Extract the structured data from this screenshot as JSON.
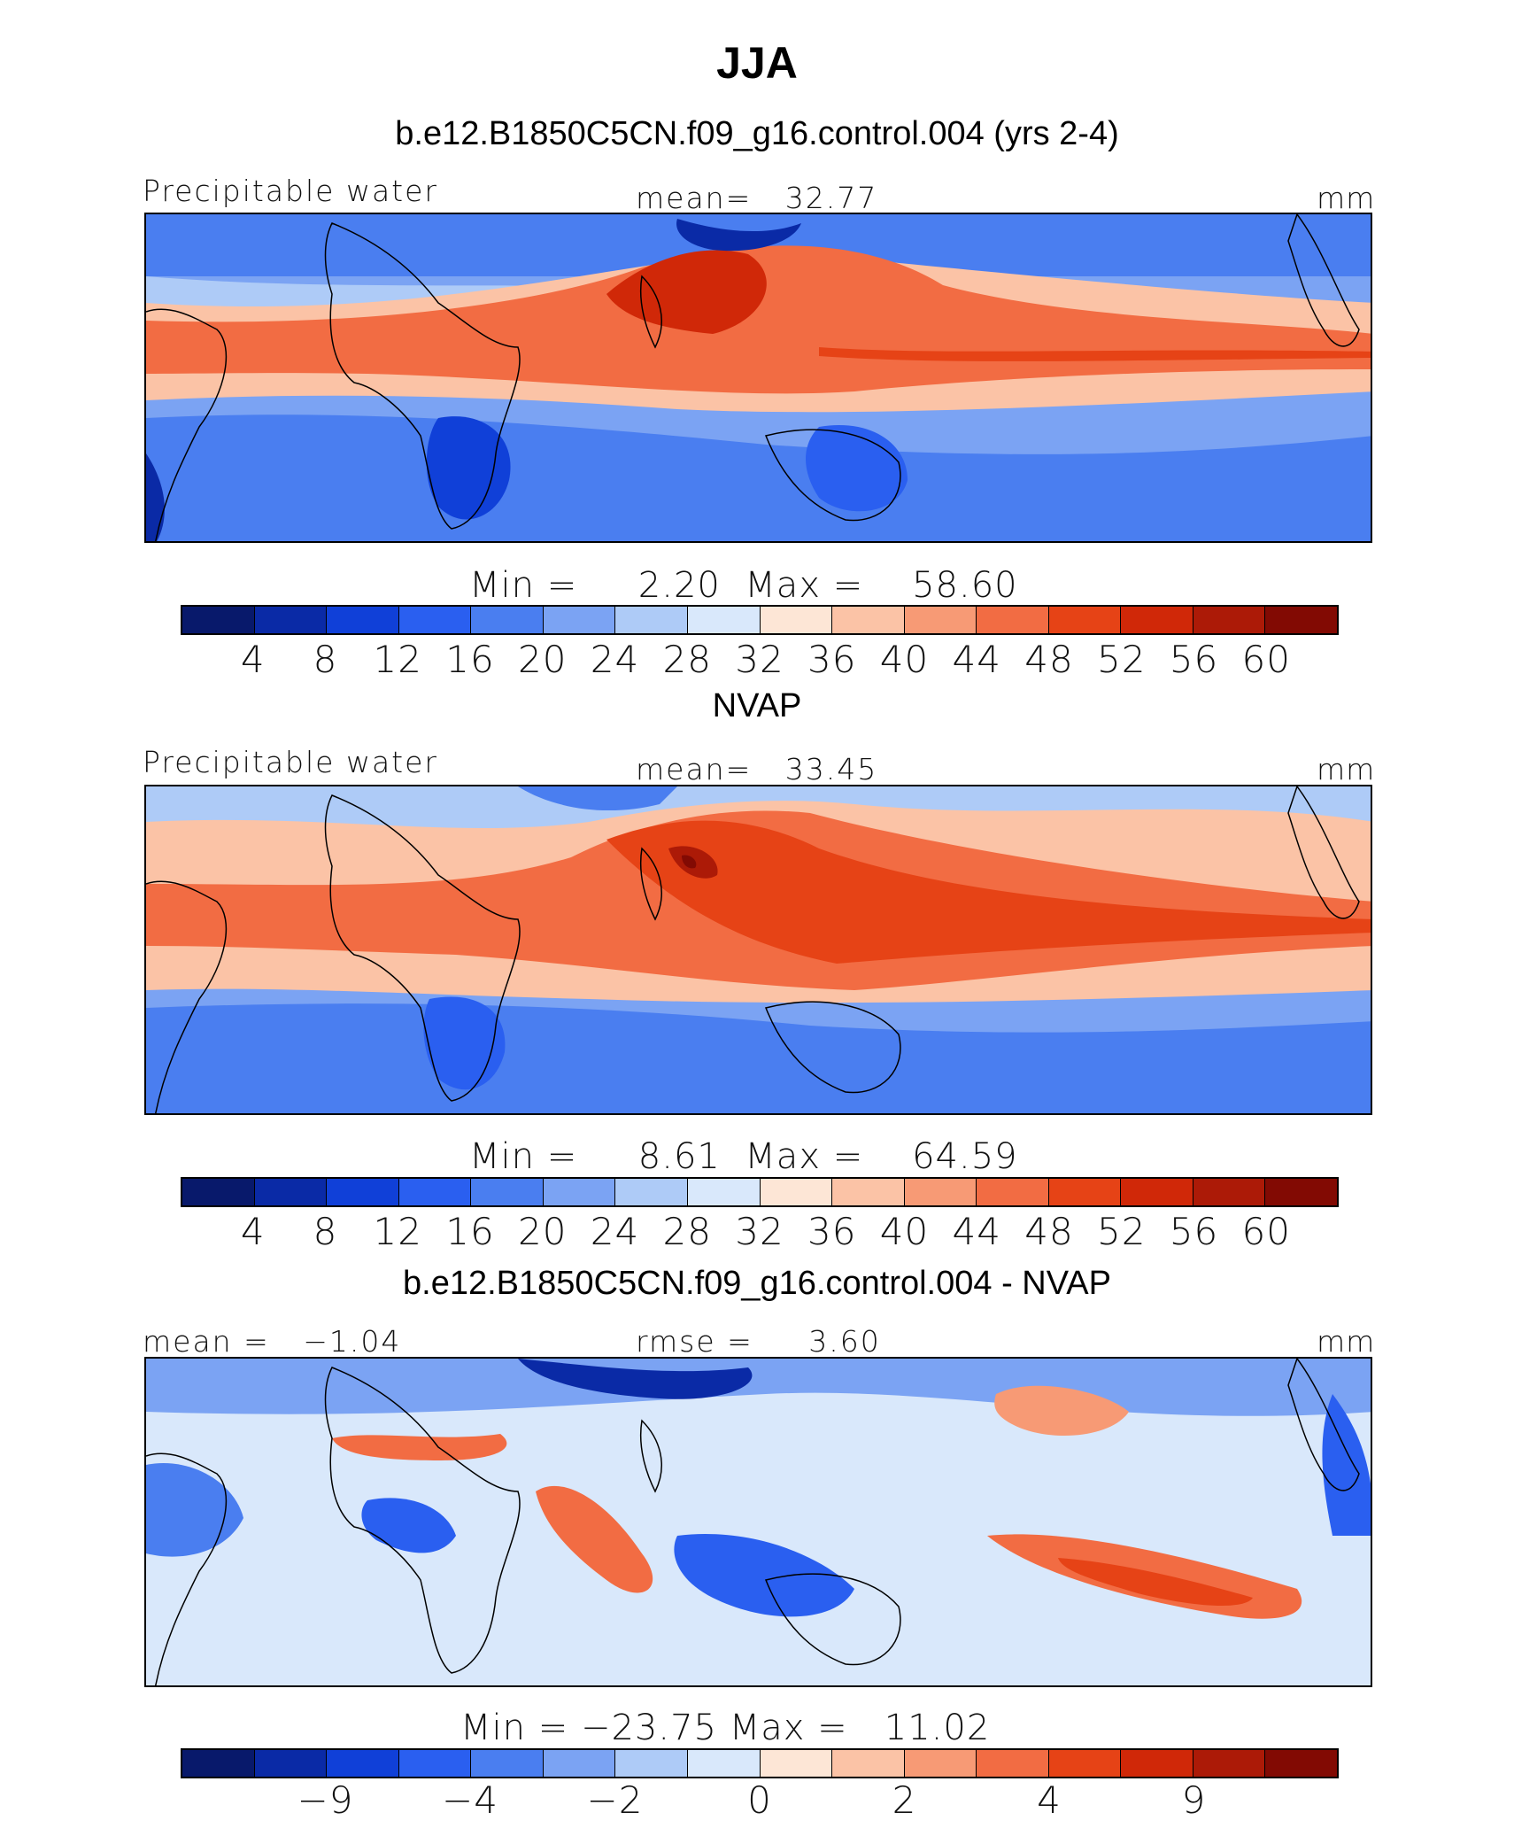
{
  "title": "JJA",
  "colors": [
    "#08196b",
    "#0a2aa6",
    "#1040d8",
    "#2a5ff0",
    "#4a7ef0",
    "#7ba3f3",
    "#aecbf7",
    "#d9e8fb",
    "#fde6d6",
    "#fbc3a6",
    "#f79a75",
    "#f26c43",
    "#e64316",
    "#d02808",
    "#ac1a07",
    "#820a03"
  ],
  "chart_data": [
    {
      "type": "contour map",
      "title": "b.e12.B1850C5CN.f09_g16.control.004 (yrs 2-4)",
      "variable": "Precipitable water",
      "mean_label": "mean=",
      "mean": "32.77",
      "units": "mm",
      "min_label": "Min =",
      "min": "2.20",
      "max_label": "Max =",
      "max": "58.60",
      "contour_levels": [
        "4",
        "8",
        "12",
        "16",
        "20",
        "24",
        "28",
        "32",
        "36",
        "40",
        "44",
        "48",
        "52",
        "56",
        "60"
      ]
    },
    {
      "type": "contour map",
      "title": "NVAP",
      "variable": "Precipitable water",
      "mean_label": "mean=",
      "mean": "33.45",
      "units": "mm",
      "min_label": "Min =",
      "min": "8.61",
      "max_label": "Max =",
      "max": "64.59",
      "contour_levels": [
        "4",
        "8",
        "12",
        "16",
        "20",
        "24",
        "28",
        "32",
        "36",
        "40",
        "44",
        "48",
        "52",
        "56",
        "60"
      ]
    },
    {
      "type": "contour map",
      "title": "b.e12.B1850C5CN.f09_g16.control.004 - NVAP",
      "mean_label": "mean =",
      "mean": "−1.04",
      "rmse_label": "rmse =",
      "rmse": "3.60",
      "units": "mm",
      "min_label": "Min =",
      "min": "−23.75",
      "max_label": "Max =",
      "max": "11.02",
      "contour_levels": [
        "−9",
        "−4",
        "−2",
        "0",
        "2",
        "4",
        "9"
      ]
    }
  ]
}
